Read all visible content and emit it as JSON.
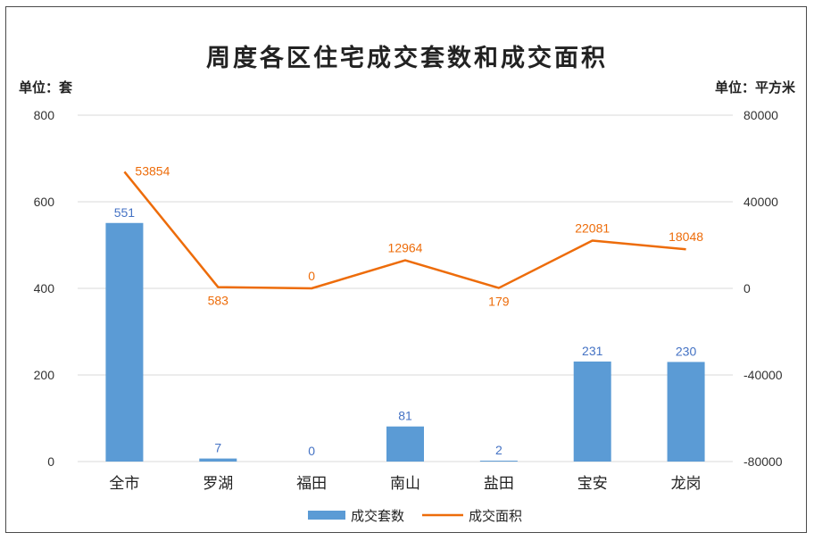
{
  "chart_data": {
    "type": "bar",
    "title": "周度各区住宅成交套数和成交面积",
    "left_unit_label": "单位：套",
    "right_unit_label": "单位：平方米",
    "categories": [
      "全市",
      "罗湖",
      "福田",
      "南山",
      "盐田",
      "宝安",
      "龙岗"
    ],
    "series": [
      {
        "name": "成交套数",
        "type": "bar",
        "axis": "left",
        "color": "#5b9bd5",
        "values": [
          551,
          7,
          0,
          81,
          2,
          231,
          230
        ]
      },
      {
        "name": "成交面积",
        "type": "line",
        "axis": "right",
        "color": "#ed6c0a",
        "values": [
          53854,
          583,
          0,
          12964,
          179,
          22081,
          18048
        ]
      }
    ],
    "left_axis": {
      "min": 0,
      "max": 800,
      "ticks": [
        "0",
        "200",
        "400",
        "600",
        "800"
      ]
    },
    "right_axis": {
      "min": -80000,
      "max": 80000,
      "ticks": [
        "-80000",
        "-40000",
        "0",
        "40000",
        "80000"
      ]
    },
    "grid": true,
    "legend": "bottom",
    "data_labels": true
  }
}
